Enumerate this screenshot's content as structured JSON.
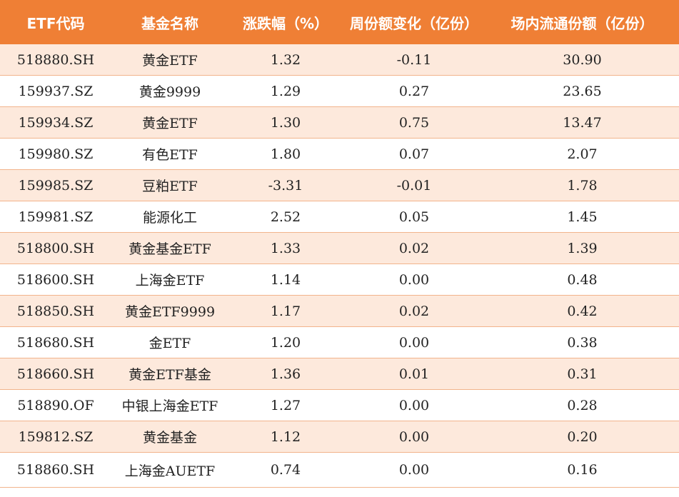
{
  "headers": [
    "ETF代码",
    "基金名称",
    "涨跌幅（%）",
    "周份额变化（亿份）",
    "场内流通份额（亿份）"
  ],
  "rows": [
    {
      "code": "518880.SH",
      "name": "黄金ETF",
      "change": "1.32",
      "weekly_share_change": "-0.11",
      "circulating_shares": "30.90"
    },
    {
      "code": "159937.SZ",
      "name": "黄金9999",
      "change": "1.29",
      "weekly_share_change": "0.27",
      "circulating_shares": "23.65"
    },
    {
      "code": "159934.SZ",
      "name": "黄金ETF",
      "change": "1.30",
      "weekly_share_change": "0.75",
      "circulating_shares": "13.47"
    },
    {
      "code": "159980.SZ",
      "name": "有色ETF",
      "change": "1.80",
      "weekly_share_change": "0.07",
      "circulating_shares": "2.07"
    },
    {
      "code": "159985.SZ",
      "name": "豆粕ETF",
      "change": "-3.31",
      "weekly_share_change": "-0.01",
      "circulating_shares": "1.78"
    },
    {
      "code": "159981.SZ",
      "name": "能源化工",
      "change": "2.52",
      "weekly_share_change": "0.05",
      "circulating_shares": "1.45"
    },
    {
      "code": "518800.SH",
      "name": "黄金基金ETF",
      "change": "1.33",
      "weekly_share_change": "0.02",
      "circulating_shares": "1.39"
    },
    {
      "code": "518600.SH",
      "name": "上海金ETF",
      "change": "1.14",
      "weekly_share_change": "0.00",
      "circulating_shares": "0.48"
    },
    {
      "code": "518850.SH",
      "name": "黄金ETF9999",
      "change": "1.17",
      "weekly_share_change": "0.02",
      "circulating_shares": "0.42"
    },
    {
      "code": "518680.SH",
      "name": "金ETF",
      "change": "1.20",
      "weekly_share_change": "0.00",
      "circulating_shares": "0.38"
    },
    {
      "code": "518660.SH",
      "name": "黄金ETF基金",
      "change": "1.36",
      "weekly_share_change": "0.01",
      "circulating_shares": "0.31"
    },
    {
      "code": "518890.OF",
      "name": "中银上海金ETF",
      "change": "1.27",
      "weekly_share_change": "0.00",
      "circulating_shares": "0.28"
    },
    {
      "code": "159812.SZ",
      "name": "黄金基金",
      "change": "1.12",
      "weekly_share_change": "0.00",
      "circulating_shares": "0.20"
    },
    {
      "code": "518860.SH",
      "name": "上海金AUETF",
      "change": "0.74",
      "weekly_share_change": "0.00",
      "circulating_shares": "0.16"
    }
  ],
  "colors": {
    "header_bg": "#ef7f35",
    "header_text": "#ffffff",
    "stripe_bg": "#fde9dc",
    "row_border": "#f2b48c"
  }
}
